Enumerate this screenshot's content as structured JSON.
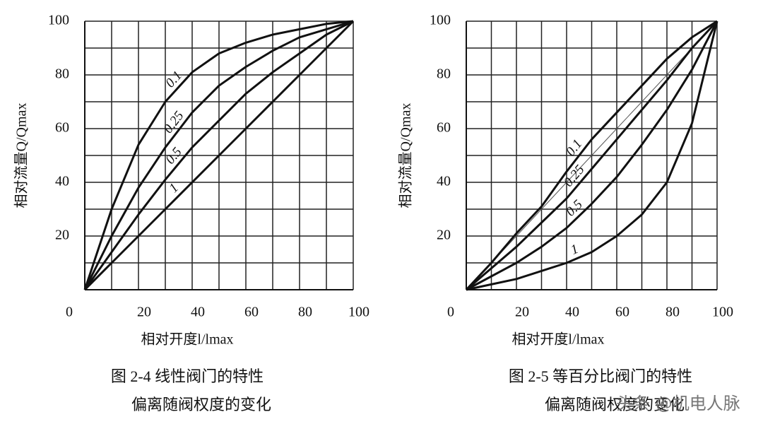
{
  "chart_data": [
    {
      "type": "line",
      "xlabel": "相对开度l/lmax",
      "ylabel": "相对流量Q/Qmax",
      "caption": [
        "图 2-4 线性阀门的特性",
        "偏离随阀权度的变化"
      ],
      "x": [
        0,
        10,
        20,
        30,
        40,
        50,
        60,
        70,
        80,
        90,
        100
      ],
      "xlim": [
        0,
        100
      ],
      "ylim": [
        0,
        100
      ],
      "xticks": [
        0,
        20,
        40,
        60,
        80,
        100
      ],
      "yticks": [
        20,
        40,
        60,
        80,
        100
      ],
      "xgrid": [
        10,
        20,
        30,
        40,
        50,
        60,
        70,
        80,
        90,
        100
      ],
      "ygrid": [
        10,
        20,
        30,
        40,
        50,
        60,
        70,
        80,
        90,
        100
      ],
      "series": [
        {
          "name": "0.1",
          "color": "#111",
          "line_width": 3,
          "values": [
            0,
            30,
            54,
            70,
            81,
            88,
            92,
            95,
            97,
            99,
            100
          ]
        },
        {
          "name": "0.25",
          "color": "#111",
          "line_width": 3,
          "values": [
            0,
            20,
            38,
            53,
            66,
            76,
            83,
            89,
            94,
            97,
            100
          ]
        },
        {
          "name": "0.5",
          "color": "#111",
          "line_width": 3,
          "values": [
            0,
            14,
            28,
            41,
            53,
            63,
            73,
            81,
            88,
            95,
            100
          ]
        },
        {
          "name": "1",
          "color": "#111",
          "line_width": 3,
          "values": [
            0,
            10,
            20,
            30,
            40,
            50,
            60,
            70,
            80,
            90,
            100
          ]
        }
      ]
    },
    {
      "type": "line",
      "xlabel": "相对开度l/lmax",
      "ylabel": "相对流量Q/Qmax",
      "caption": [
        "图 2-5 等百分比阀门的特性",
        "偏离随阀权度的变化"
      ],
      "x": [
        0,
        10,
        20,
        30,
        40,
        50,
        60,
        70,
        80,
        90,
        100
      ],
      "xlim": [
        0,
        100
      ],
      "ylim": [
        0,
        100
      ],
      "xticks": [
        0,
        20,
        40,
        60,
        80,
        100
      ],
      "yticks": [
        20,
        40,
        60,
        80,
        100
      ],
      "xgrid": [
        10,
        20,
        30,
        40,
        50,
        60,
        70,
        80,
        90,
        100
      ],
      "ygrid": [
        10,
        20,
        30,
        40,
        50,
        60,
        70,
        80,
        90,
        100
      ],
      "series": [
        {
          "color": "#555",
          "line_width": 1,
          "values": [
            0,
            10,
            20,
            30,
            40,
            50,
            60,
            70,
            80,
            90,
            100
          ]
        },
        {
          "name": "0.1",
          "color": "#111",
          "line_width": 3,
          "values": [
            0,
            10,
            21,
            31,
            44,
            56,
            66,
            76,
            86,
            94,
            100
          ]
        },
        {
          "name": "0.25",
          "color": "#111",
          "line_width": 3,
          "values": [
            0,
            8,
            16,
            25,
            34,
            45,
            56,
            67,
            78,
            90,
            100
          ]
        },
        {
          "name": "0.5",
          "color": "#111",
          "line_width": 3,
          "values": [
            0,
            5,
            10,
            16,
            23,
            32,
            42,
            54,
            67,
            82,
            100
          ]
        },
        {
          "name": "1",
          "color": "#111",
          "line_width": 3,
          "values": [
            0,
            2,
            4,
            7,
            10,
            14,
            20,
            28,
            40,
            62,
            100
          ]
        }
      ]
    }
  ],
  "watermark": "头条 @机电人脉"
}
